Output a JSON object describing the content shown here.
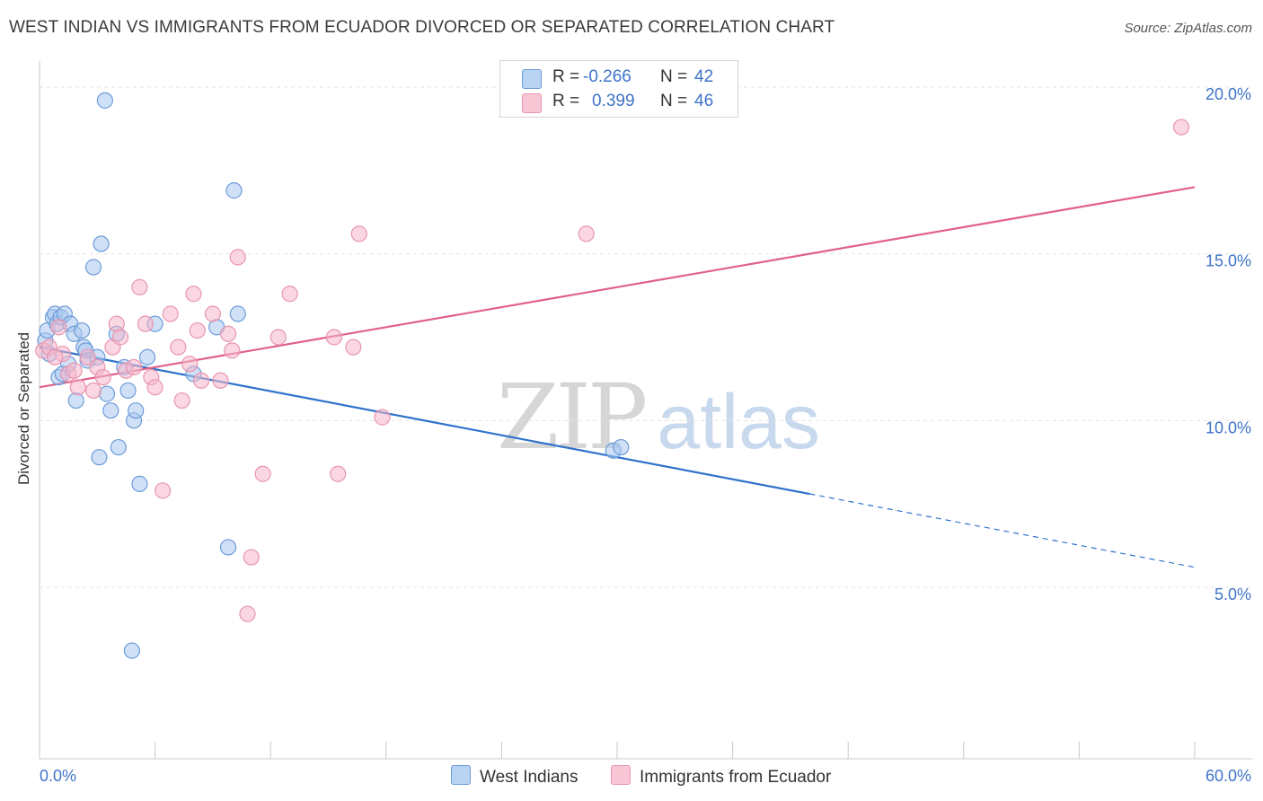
{
  "title": "WEST INDIAN VS IMMIGRANTS FROM ECUADOR DIVORCED OR SEPARATED CORRELATION CHART",
  "source": "Source: ZipAtlas.com",
  "watermark": {
    "zip": "ZIP",
    "atlas": "atlas"
  },
  "legend": {
    "row1": {
      "r_label": "R =",
      "r_value": "-0.266",
      "n_label": "N =",
      "n_value": "42"
    },
    "row2": {
      "r_label": "R =",
      "r_value": "0.399",
      "n_label": "N =",
      "n_value": "46"
    }
  },
  "bottom_legend": {
    "series1": "West Indians",
    "series2": "Immigrants from Ecuador"
  },
  "colors": {
    "blue_fill": "#a9c8f0",
    "blue_stroke": "#6d9bd8",
    "blue_line": "#2f72cc",
    "pink_fill": "#f6b7cb",
    "pink_stroke": "#e895b0",
    "pink_line": "#e0608a",
    "grid": "#e3e3e3",
    "axis_text": "#3f73c8"
  },
  "chart_data": {
    "type": "scatter",
    "title": "WEST INDIAN VS IMMIGRANTS FROM ECUADOR DIVORCED OR SEPARATED CORRELATION CHART",
    "xlabel": "",
    "ylabel": "Divorced or Separated",
    "xlim": [
      0,
      60
    ],
    "ylim": [
      0,
      20.7
    ],
    "x_tick_labels": [
      "0.0%",
      "60.0%"
    ],
    "y_ticks": [
      5,
      10,
      15,
      20
    ],
    "y_tick_labels": [
      "5.0%",
      "10.0%",
      "15.0%",
      "20.0%"
    ],
    "grid": true,
    "legend_position": "top-center",
    "series": [
      {
        "name": "West Indians",
        "color": "#a9c8f0",
        "r": -0.266,
        "n": 42,
        "trend": {
          "x": [
            0,
            40
          ],
          "y": [
            12.2,
            7.8
          ],
          "dashed_to": [
            60,
            5.6
          ]
        },
        "points": [
          [
            0.3,
            12.4
          ],
          [
            0.4,
            12.7
          ],
          [
            0.7,
            13.1
          ],
          [
            0.8,
            13.2
          ],
          [
            0.9,
            12.9
          ],
          [
            1.0,
            11.3
          ],
          [
            1.1,
            13.1
          ],
          [
            1.3,
            13.2
          ],
          [
            1.5,
            11.7
          ],
          [
            1.6,
            12.9
          ],
          [
            1.8,
            12.6
          ],
          [
            1.9,
            10.6
          ],
          [
            2.2,
            12.7
          ],
          [
            2.3,
            12.2
          ],
          [
            2.4,
            12.1
          ],
          [
            2.5,
            11.8
          ],
          [
            2.8,
            14.6
          ],
          [
            3.0,
            11.9
          ],
          [
            3.2,
            15.3
          ],
          [
            3.1,
            8.9
          ],
          [
            3.4,
            19.6
          ],
          [
            3.5,
            10.8
          ],
          [
            3.7,
            10.3
          ],
          [
            4.0,
            12.6
          ],
          [
            4.1,
            9.2
          ],
          [
            4.4,
            11.6
          ],
          [
            4.6,
            10.9
          ],
          [
            4.8,
            3.1
          ],
          [
            4.9,
            10.0
          ],
          [
            5.0,
            10.3
          ],
          [
            5.2,
            8.1
          ],
          [
            5.6,
            11.9
          ],
          [
            6.0,
            12.9
          ],
          [
            8.0,
            11.4
          ],
          [
            9.2,
            12.8
          ],
          [
            9.8,
            6.2
          ],
          [
            10.1,
            16.9
          ],
          [
            10.3,
            13.2
          ],
          [
            29.8,
            9.1
          ],
          [
            30.2,
            9.2
          ],
          [
            0.5,
            12.0
          ],
          [
            1.2,
            11.4
          ]
        ]
      },
      {
        "name": "Immigrants from Ecuador",
        "color": "#f6b7cb",
        "r": 0.399,
        "n": 46,
        "trend": {
          "x": [
            0,
            60
          ],
          "y": [
            11.0,
            17.0
          ]
        },
        "points": [
          [
            0.2,
            12.1
          ],
          [
            0.5,
            12.2
          ],
          [
            1.0,
            12.8
          ],
          [
            1.2,
            12.0
          ],
          [
            1.5,
            11.4
          ],
          [
            1.8,
            11.5
          ],
          [
            2.0,
            11.0
          ],
          [
            2.5,
            11.9
          ],
          [
            2.8,
            10.9
          ],
          [
            3.0,
            11.6
          ],
          [
            3.3,
            11.3
          ],
          [
            3.8,
            12.2
          ],
          [
            4.0,
            12.9
          ],
          [
            4.2,
            12.5
          ],
          [
            4.5,
            11.5
          ],
          [
            4.9,
            11.6
          ],
          [
            5.2,
            14.0
          ],
          [
            5.5,
            12.9
          ],
          [
            5.8,
            11.3
          ],
          [
            6.0,
            11.0
          ],
          [
            6.4,
            7.9
          ],
          [
            6.8,
            13.2
          ],
          [
            7.2,
            12.2
          ],
          [
            7.4,
            10.6
          ],
          [
            7.8,
            11.7
          ],
          [
            8.0,
            13.8
          ],
          [
            8.2,
            12.7
          ],
          [
            8.4,
            11.2
          ],
          [
            9.0,
            13.2
          ],
          [
            9.4,
            11.2
          ],
          [
            9.8,
            12.6
          ],
          [
            10.0,
            12.1
          ],
          [
            10.3,
            14.9
          ],
          [
            10.8,
            4.2
          ],
          [
            11.0,
            5.9
          ],
          [
            11.6,
            8.4
          ],
          [
            12.4,
            12.5
          ],
          [
            13.0,
            13.8
          ],
          [
            15.3,
            12.5
          ],
          [
            15.5,
            8.4
          ],
          [
            16.3,
            12.2
          ],
          [
            16.6,
            15.6
          ],
          [
            17.8,
            10.1
          ],
          [
            28.4,
            15.6
          ],
          [
            59.3,
            18.8
          ],
          [
            0.8,
            11.9
          ]
        ]
      }
    ]
  }
}
